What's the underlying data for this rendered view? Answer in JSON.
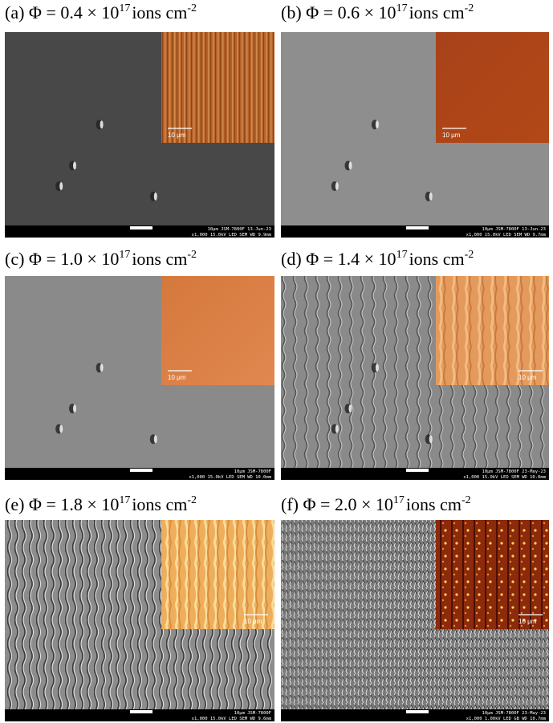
{
  "panels": [
    {
      "title": "(a) Φ = 0.4 × 10",
      "exponent": "17",
      "unit": "ions cm",
      "unit_exponent": "-2",
      "inset_scale": "10 μm",
      "info_top": "10μm  JSM-7800F  13-Jun-23",
      "info_bottom": "x1,000    15.0kV LED    SEM    WD 9.9mm"
    },
    {
      "title": "(b) Φ = 0.6 × 10",
      "exponent": "17",
      "unit": "ions cm",
      "unit_exponent": "-2",
      "inset_scale": "10 μm",
      "info_top": "10μm  JSM-7800F  13-Jun-23",
      "info_bottom": "x1,000    15.0kV LED    SEM    WD 9.7mm"
    },
    {
      "title": "(c) Φ = 1.0 × 10",
      "exponent": "17",
      "unit": "ions cm",
      "unit_exponent": "-2",
      "inset_scale": "10 μm",
      "info_top": "10μm  JSM-7800F",
      "info_bottom": "x1,000    15.0kV LED    SEM    WD 10.0mm"
    },
    {
      "title": "(d) Φ = 1.4 × 10",
      "exponent": "17",
      "unit": "ions cm",
      "unit_exponent": "-2",
      "inset_scale": "10 μm",
      "info_top": "10μm  JSM-7800F  23-May-23",
      "info_bottom": "x1,000    15.0kV LED    SEM    WD 10.0mm"
    },
    {
      "title": "(e) Φ = 1.8 × 10",
      "exponent": "17",
      "unit": "ions cm",
      "unit_exponent": "-2",
      "inset_scale": "10 μm",
      "info_top": "10μm  JSM-7800F",
      "info_bottom": "x1,000    15.0kV LED    SEM    WD 9.6mm"
    },
    {
      "title": "(f) Φ = 2.0 × 10",
      "exponent": "17",
      "unit": "ions cm",
      "unit_exponent": "-2",
      "inset_scale": "10 μm",
      "info_top": "10μm  JSM-7800F  23-May-23",
      "info_bottom": "x1,000    1.00kV LED    GB    WD 10.7mm"
    }
  ]
}
